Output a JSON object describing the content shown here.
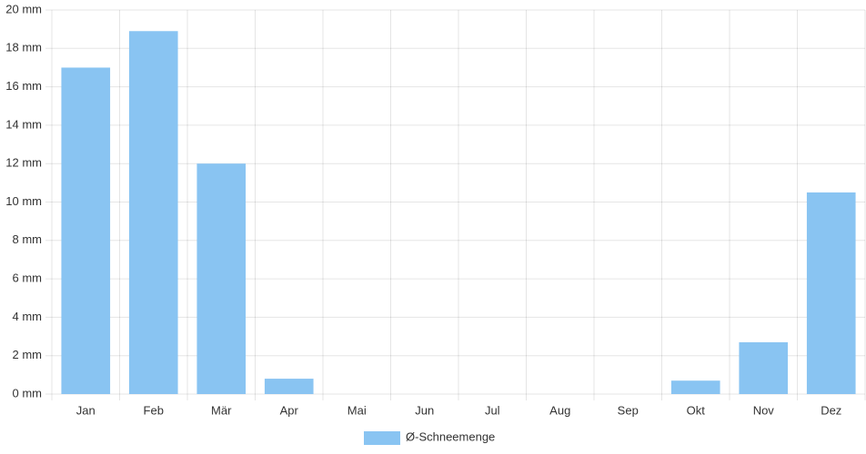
{
  "chart_data": {
    "type": "bar",
    "categories": [
      "Jan",
      "Feb",
      "Mär",
      "Apr",
      "Mai",
      "Jun",
      "Jul",
      "Aug",
      "Sep",
      "Okt",
      "Nov",
      "Dez"
    ],
    "series": [
      {
        "name": "Ø-Schneemenge",
        "color": "#89c4f2",
        "values": [
          17,
          18.9,
          12,
          0.8,
          0,
          0,
          0,
          0,
          0,
          0.7,
          2.7,
          10.5
        ]
      }
    ],
    "ylim": [
      0,
      20
    ],
    "yticks": [
      {
        "value": 0,
        "label": "0 mm"
      },
      {
        "value": 2,
        "label": "2 mm"
      },
      {
        "value": 4,
        "label": "4 mm"
      },
      {
        "value": 6,
        "label": "6 mm"
      },
      {
        "value": 8,
        "label": "8 mm"
      },
      {
        "value": 10,
        "label": "10 mm"
      },
      {
        "value": 12,
        "label": "12 mm"
      },
      {
        "value": 14,
        "label": "14 mm"
      },
      {
        "value": 16,
        "label": "16 mm"
      },
      {
        "value": 18,
        "label": "18 mm"
      },
      {
        "value": 20,
        "label": "20 mm"
      }
    ],
    "grid": true,
    "legend": "bottom"
  }
}
